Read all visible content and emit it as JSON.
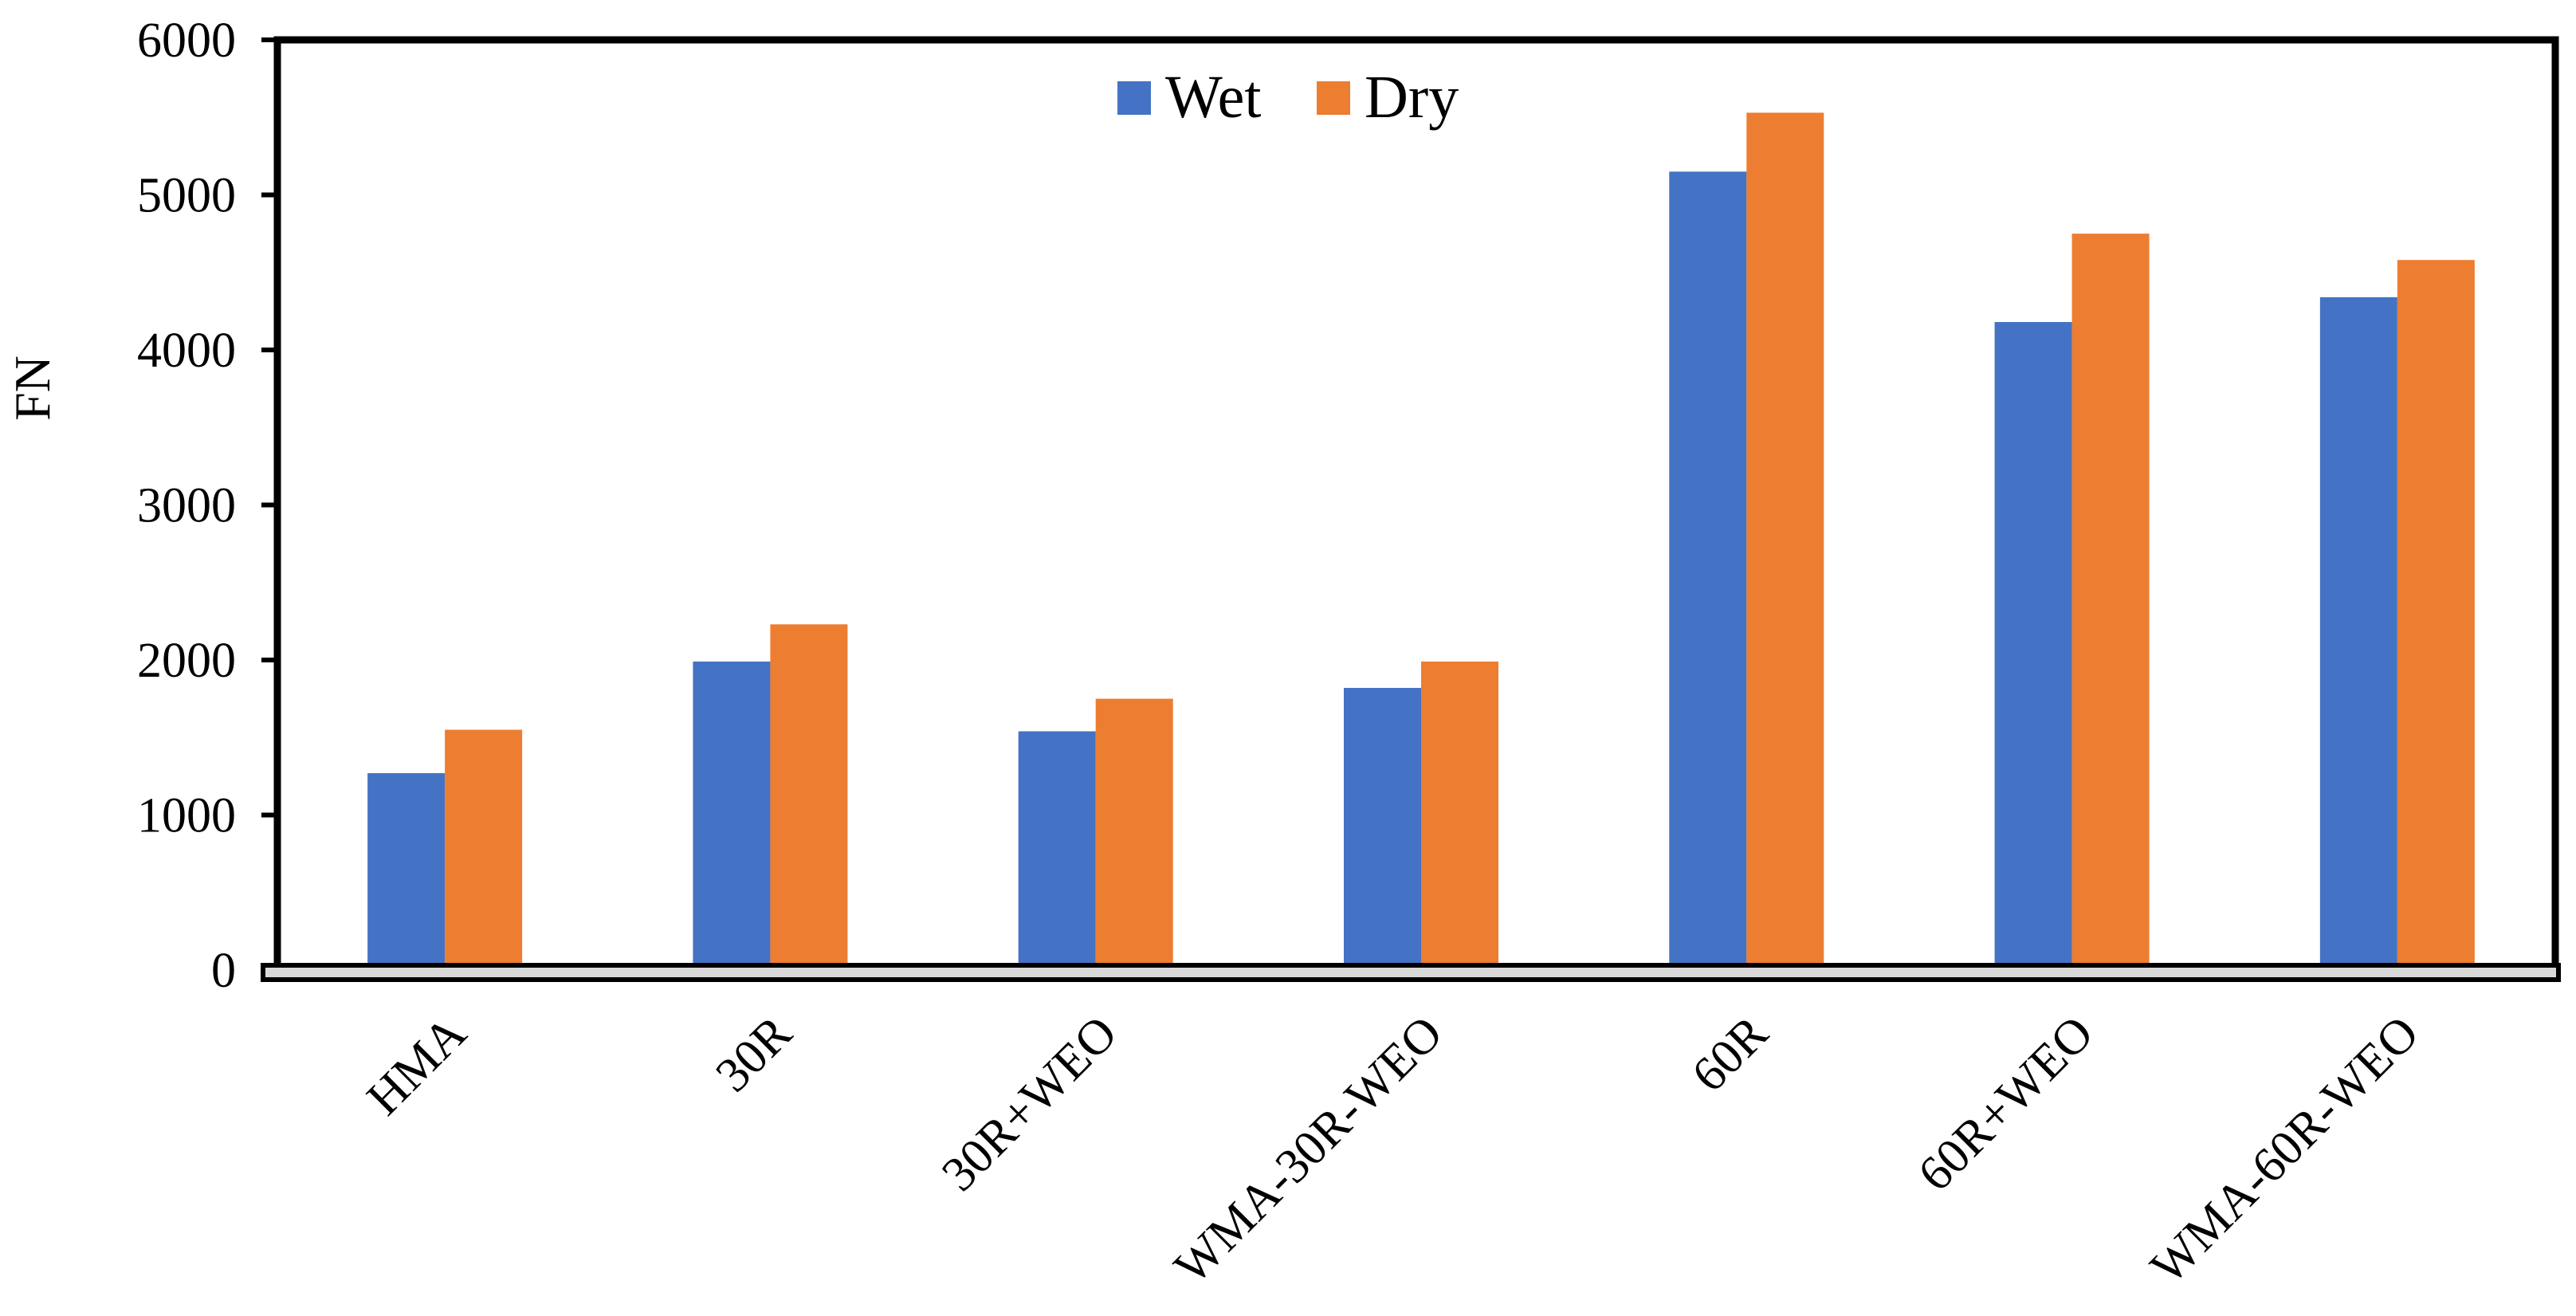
{
  "chart_data": {
    "type": "bar",
    "title": "",
    "xlabel": "",
    "ylabel": "FN",
    "ylim": [
      0,
      6000
    ],
    "yticks": [
      0,
      1000,
      2000,
      3000,
      4000,
      5000,
      6000
    ],
    "grid": false,
    "legend_position": "top-center",
    "categories": [
      "HMA",
      "30R",
      "30R+WEO",
      "WMA-30R-WEO",
      "60R",
      "60R+WEO",
      "WMA-60R-WEO"
    ],
    "series": [
      {
        "name": "Wet",
        "color": "#4472C4",
        "values": [
          1270,
          1990,
          1540,
          1820,
          5150,
          4180,
          4340
        ]
      },
      {
        "name": "Dry",
        "color": "#ED7D31",
        "values": [
          1550,
          2230,
          1750,
          1990,
          5530,
          4750,
          4580
        ]
      }
    ]
  }
}
